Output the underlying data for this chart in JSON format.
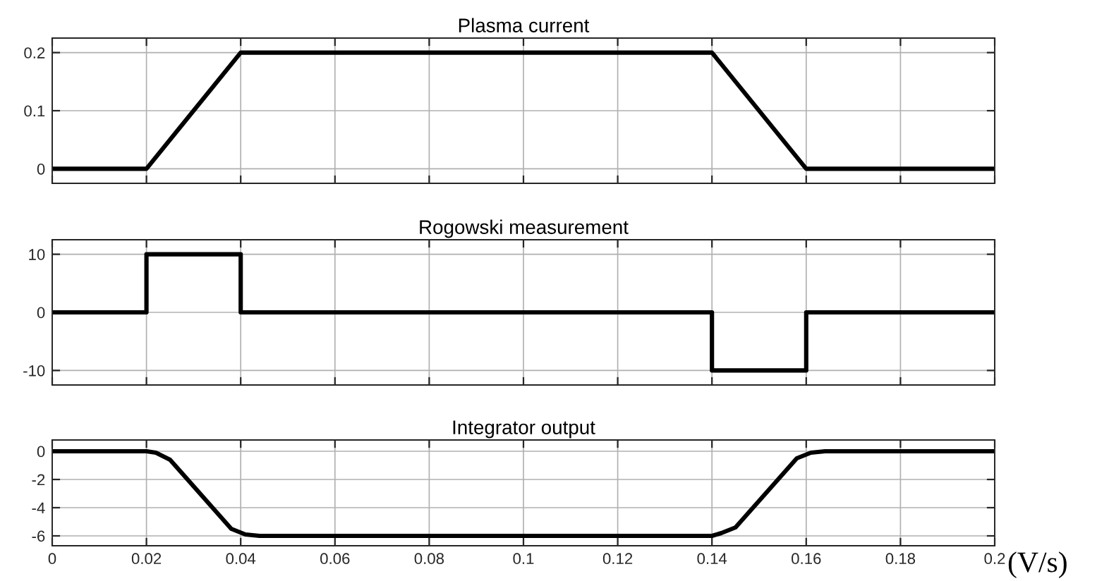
{
  "chart_data": [
    {
      "type": "line",
      "title": "Plasma current",
      "x": [
        0,
        0.02,
        0.04,
        0.14,
        0.16,
        0.2
      ],
      "series": [
        {
          "color": "#000000",
          "values": [
            0,
            0,
            0.2,
            0.2,
            0,
            0
          ]
        }
      ],
      "xlim": [
        0,
        0.2
      ],
      "xticks": [
        0,
        0.02,
        0.04,
        0.06,
        0.08,
        0.1,
        0.12,
        0.14,
        0.16,
        0.18,
        0.2
      ],
      "ylim": [
        -0.025,
        0.225
      ],
      "yticks": [
        0,
        0.1,
        0.2
      ],
      "grid": true,
      "tick_labels": "y"
    },
    {
      "type": "line",
      "title": "Rogowski measurement",
      "x": [
        0,
        0.02,
        0.02,
        0.04,
        0.04,
        0.14,
        0.14,
        0.16,
        0.16,
        0.2
      ],
      "series": [
        {
          "color": "#000000",
          "values": [
            0,
            0,
            10,
            10,
            0,
            0,
            -10,
            -10,
            0,
            0
          ]
        }
      ],
      "xlim": [
        0,
        0.2
      ],
      "xticks": [
        0,
        0.02,
        0.04,
        0.06,
        0.08,
        0.1,
        0.12,
        0.14,
        0.16,
        0.18,
        0.2
      ],
      "ylim": [
        -12.5,
        12.5
      ],
      "yticks": [
        -10,
        0,
        10
      ],
      "grid": true,
      "tick_labels": "y"
    },
    {
      "type": "line",
      "title": "Integrator output",
      "x": [
        0,
        0.02,
        0.022,
        0.025,
        0.038,
        0.041,
        0.044,
        0.14,
        0.142,
        0.145,
        0.158,
        0.161,
        0.164,
        0.2
      ],
      "series": [
        {
          "color": "#000000",
          "values": [
            0,
            0,
            -0.1,
            -0.6,
            -5.5,
            -5.9,
            -6,
            -6,
            -5.8,
            -5.4,
            -0.5,
            -0.1,
            0,
            0
          ]
        }
      ],
      "xlim": [
        0,
        0.2
      ],
      "xticks": [
        0,
        0.02,
        0.04,
        0.06,
        0.08,
        0.1,
        0.12,
        0.14,
        0.16,
        0.18,
        0.2
      ],
      "ylim": [
        -6.7,
        0.8
      ],
      "yticks": [
        -6,
        -4,
        -2,
        0
      ],
      "grid": true,
      "annotations": [
        "(V/s)"
      ]
    }
  ]
}
